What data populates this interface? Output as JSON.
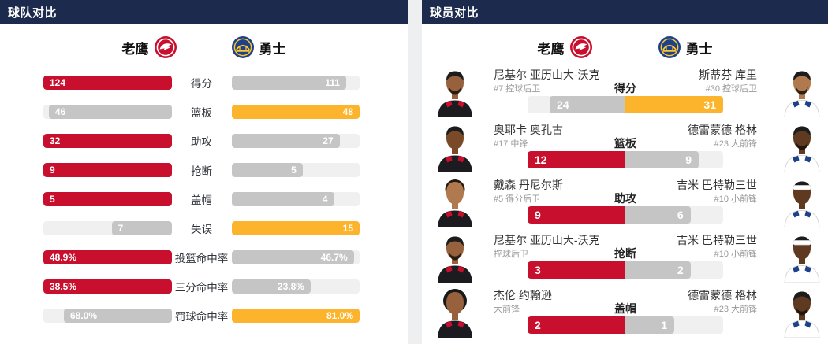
{
  "colors": {
    "navy": "#1C2B4D",
    "hawks_red": "#C8102E",
    "warriors_gold": "#FBB42C",
    "loser_gray": "#C5C5C6",
    "track_gray": "#F0F0F0",
    "hawks_jersey": "#1b1b20",
    "warriors_jersey": "#ffffff",
    "hawks_trim": "#C8102E",
    "warriors_trim": "#1D428A"
  },
  "team_panel": {
    "title": "球队对比",
    "teams": {
      "left": {
        "name": "老鹰",
        "logo": "hawks-logo"
      },
      "right": {
        "name": "勇士",
        "logo": "warriors-logo"
      }
    },
    "rows": [
      {
        "label": "得分",
        "left_display": "124",
        "left_value": 124,
        "right_display": "111",
        "right_value": 111,
        "winner": "left"
      },
      {
        "label": "篮板",
        "left_display": "46",
        "left_value": 46,
        "right_display": "48",
        "right_value": 48,
        "winner": "right"
      },
      {
        "label": "助攻",
        "left_display": "32",
        "left_value": 32,
        "right_display": "27",
        "right_value": 27,
        "winner": "left"
      },
      {
        "label": "抢断",
        "left_display": "9",
        "left_value": 9,
        "right_display": "5",
        "right_value": 5,
        "winner": "left"
      },
      {
        "label": "盖帽",
        "left_display": "5",
        "left_value": 5,
        "right_display": "4",
        "right_value": 4,
        "winner": "left"
      },
      {
        "label": "失误",
        "left_display": "7",
        "left_value": 7,
        "right_display": "15",
        "right_value": 15,
        "winner": "right"
      },
      {
        "label": "投篮命中率",
        "left_display": "48.9%",
        "left_value": 48.9,
        "right_display": "46.7%",
        "right_value": 46.7,
        "winner": "left"
      },
      {
        "label": "三分命中率",
        "left_display": "38.5%",
        "left_value": 38.5,
        "right_display": "23.8%",
        "right_value": 23.8,
        "winner": "left"
      },
      {
        "label": "罚球命中率",
        "left_display": "68.0%",
        "left_value": 68.0,
        "right_display": "81.0%",
        "right_value": 81.0,
        "winner": "right"
      }
    ]
  },
  "player_panel": {
    "title": "球员对比",
    "teams": {
      "left": {
        "name": "老鹰",
        "logo": "hawks-logo"
      },
      "right": {
        "name": "勇士",
        "logo": "warriors-logo"
      }
    },
    "rows": [
      {
        "label": "得分",
        "left": {
          "name": "尼基尔 亚历山大-沃克",
          "position": "#7 控球后卫",
          "display": "24",
          "value": 24,
          "avatar": {
            "team": "hawks",
            "skin": "#96613c",
            "hair": "short",
            "beard": true
          }
        },
        "right": {
          "name": "斯蒂芬 库里",
          "position": "#30 控球后卫",
          "display": "31",
          "value": 31,
          "avatar": {
            "team": "warriors",
            "skin": "#b07a4e",
            "hair": "short",
            "beard": true
          }
        },
        "winner": "right"
      },
      {
        "label": "篮板",
        "left": {
          "name": "奥耶卡 奥孔古",
          "position": "#17 中锋",
          "display": "12",
          "value": 12,
          "avatar": {
            "team": "hawks",
            "skin": "#7a4a28",
            "hair": "short"
          }
        },
        "right": {
          "name": "德雷蒙德 格林",
          "position": "#23 大前锋",
          "display": "9",
          "value": 9,
          "avatar": {
            "team": "warriors",
            "skin": "#5f3a20",
            "hair": "short",
            "beard": true
          }
        },
        "winner": "left"
      },
      {
        "label": "助攻",
        "left": {
          "name": "戴森 丹尼尔斯",
          "position": "#5 得分后卫",
          "display": "9",
          "value": 9,
          "avatar": {
            "team": "hawks",
            "skin": "#b07a4e",
            "hair": "curly"
          }
        },
        "right": {
          "name": "吉米 巴特勒三世",
          "position": "#10 小前锋",
          "display": "6",
          "value": 6,
          "avatar": {
            "team": "warriors",
            "skin": "#5f3a20",
            "hair": "short",
            "headband": true
          }
        },
        "winner": "left"
      },
      {
        "label": "抢断",
        "left": {
          "name": "尼基尔 亚历山大-沃克",
          "position": "控球后卫",
          "display": "3",
          "value": 3,
          "avatar": {
            "team": "hawks",
            "skin": "#96613c",
            "hair": "short",
            "beard": true
          }
        },
        "right": {
          "name": "吉米 巴特勒三世",
          "position": "#10 小前锋",
          "display": "2",
          "value": 2,
          "avatar": {
            "team": "warriors",
            "skin": "#5f3a20",
            "hair": "short",
            "headband": true
          }
        },
        "winner": "left"
      },
      {
        "label": "盖帽",
        "left": {
          "name": "杰伦 约翰逊",
          "position": "大前锋",
          "display": "2",
          "value": 2,
          "avatar": {
            "team": "hawks",
            "skin": "#96613c",
            "hair": "afro"
          }
        },
        "right": {
          "name": "德雷蒙德 格林",
          "position": "#23 大前锋",
          "display": "1",
          "value": 1,
          "avatar": {
            "team": "warriors",
            "skin": "#5f3a20",
            "hair": "short",
            "beard": true
          }
        },
        "winner": "left"
      }
    ]
  }
}
